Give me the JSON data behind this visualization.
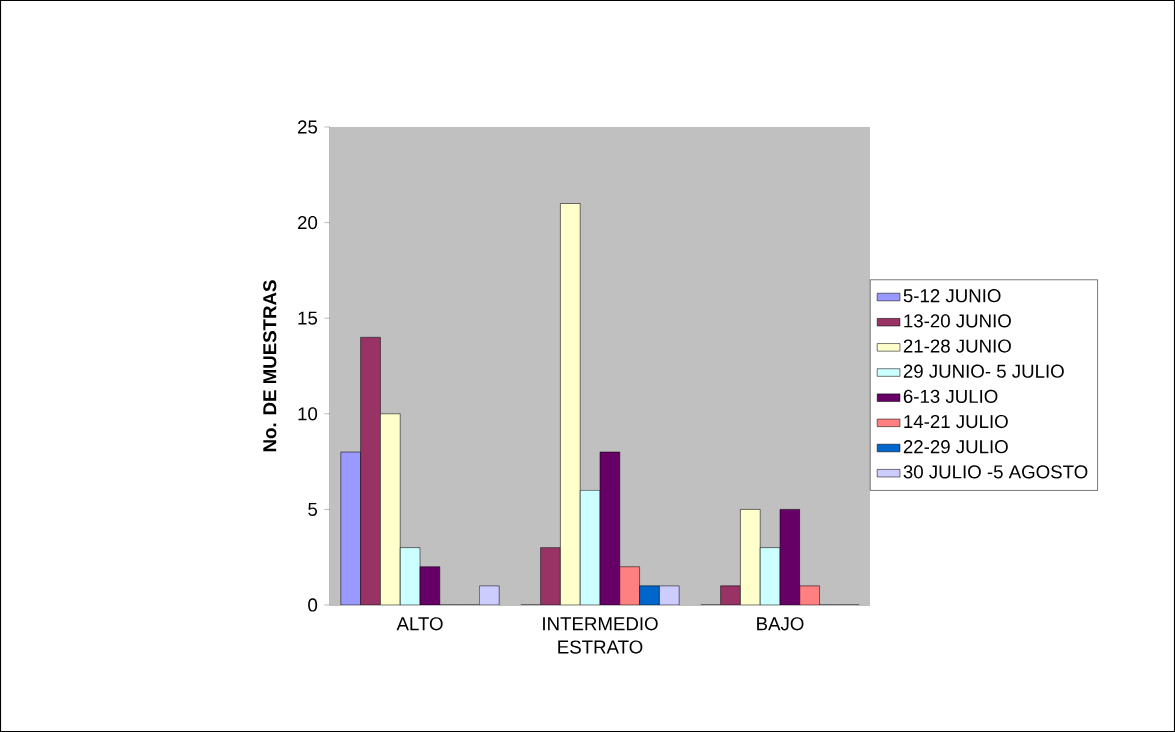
{
  "chart_data": {
    "type": "bar",
    "xlabel": "ESTRATO",
    "ylabel": "No. DE MUESTRAS",
    "categories": [
      "ALTO",
      "INTERMEDIO",
      "BAJO"
    ],
    "ylim": [
      0,
      25
    ],
    "yticks": [
      0,
      5,
      10,
      15,
      20,
      25
    ],
    "legend": "right",
    "series": [
      {
        "name": "5-12 JUNIO",
        "color": "#9999ff",
        "values": [
          8,
          0,
          0
        ]
      },
      {
        "name": "13-20 JUNIO",
        "color": "#993366",
        "values": [
          14,
          3,
          1
        ]
      },
      {
        "name": "21-28 JUNIO",
        "color": "#ffffcc",
        "values": [
          10,
          21,
          5
        ]
      },
      {
        "name": "29 JUNIO- 5 JULIO",
        "color": "#ccffff",
        "values": [
          3,
          6,
          3
        ]
      },
      {
        "name": "6-13 JULIO",
        "color": "#660066",
        "values": [
          2,
          8,
          5
        ]
      },
      {
        "name": "14-21 JULIO",
        "color": "#ff8080",
        "values": [
          0,
          2,
          1
        ]
      },
      {
        "name": "22-29 JULIO",
        "color": "#0066cc",
        "values": [
          0,
          1,
          0
        ]
      },
      {
        "name": "30 JULIO -5 AGOSTO",
        "color": "#ccccff",
        "values": [
          1,
          1,
          0
        ]
      }
    ]
  }
}
